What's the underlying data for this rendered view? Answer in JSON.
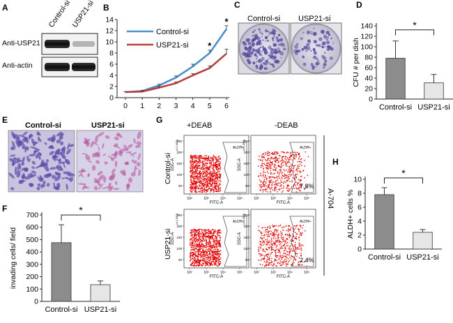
{
  "panels": {
    "a": {
      "letter": "A",
      "lanes": [
        "Control-si",
        "USP21-si"
      ],
      "blots": [
        "Anti-USP21",
        "Anti-actin"
      ]
    },
    "c": {
      "letter": "C",
      "dish_labels": [
        "Control-si",
        "USP21-si"
      ]
    },
    "e": {
      "letter": "E",
      "image_labels": [
        "Control-si",
        "USP21-si"
      ]
    },
    "g": {
      "letter": "G",
      "columns": [
        "+DEAB",
        "-DEAB"
      ],
      "rows": [
        "Control-si",
        "USP21-si"
      ],
      "gate_label": "ALDH+",
      "side_label": "A-704",
      "x_axis_label": "FITC-A",
      "y_axis_label": "SSC-A",
      "y_scale_label": "(x 1,000)",
      "x_ticks": [
        "10²",
        "10³",
        "10⁴",
        "10⁵"
      ],
      "y_ticks": [
        "250",
        "200",
        "150",
        "100",
        "50"
      ],
      "percents": {
        "control_deab_minus": "7.8%",
        "usp21_deab_minus": "2.4%"
      }
    }
  },
  "chart_data": [
    {
      "panel": "B",
      "type": "line",
      "title": "",
      "xlabel": "",
      "ylabel": "",
      "x": [
        0,
        1,
        2,
        3,
        4,
        5,
        6
      ],
      "xlim": [
        0,
        6
      ],
      "ylim": [
        0,
        14
      ],
      "yticks": [
        0,
        2,
        4,
        6,
        8,
        10,
        12,
        14
      ],
      "legend_position": "top-left",
      "series": [
        {
          "name": "Control-si",
          "color": "#4a90cd",
          "values": [
            1.0,
            1.2,
            2.2,
            3.6,
            5.6,
            8.0,
            12.3
          ],
          "errors": [
            0.05,
            0.1,
            0.2,
            0.3,
            0.4,
            0.5,
            0.6
          ]
        },
        {
          "name": "USP21-si",
          "color": "#b8413a",
          "values": [
            1.0,
            1.1,
            1.8,
            2.6,
            4.0,
            5.3,
            7.9
          ],
          "errors": [
            0.05,
            0.1,
            0.2,
            0.2,
            0.3,
            0.4,
            0.8
          ]
        }
      ],
      "annotations": [
        {
          "x": 5,
          "text": "*"
        },
        {
          "x": 6,
          "text": "*"
        }
      ]
    },
    {
      "panel": "D",
      "type": "bar",
      "title": "",
      "xlabel": "",
      "ylabel": "CFU # per dish",
      "categories": [
        "Control-si",
        "USP21-si"
      ],
      "values": [
        78,
        31
      ],
      "errors": [
        33,
        16
      ],
      "colors": [
        "#8c8c8c",
        "#e6e6e6"
      ],
      "ylim": [
        0,
        140
      ],
      "yticks": [
        0,
        20,
        40,
        60,
        80,
        100,
        120,
        140
      ],
      "significance": "*"
    },
    {
      "panel": "F",
      "type": "bar",
      "title": "",
      "xlabel": "",
      "ylabel": "invading cells/ field",
      "categories": [
        "Control-si",
        "USP21-si"
      ],
      "values": [
        475,
        135
      ],
      "errors": [
        145,
        30
      ],
      "colors": [
        "#8c8c8c",
        "#e6e6e6"
      ],
      "ylim": [
        0,
        700
      ],
      "yticks": [
        0,
        100,
        200,
        300,
        400,
        500,
        600,
        700
      ],
      "significance": "*"
    },
    {
      "panel": "H",
      "type": "bar",
      "title": "",
      "xlabel": "",
      "ylabel": "ALDH+ cells %",
      "categories": [
        "Control-si",
        "USP21-si"
      ],
      "values": [
        7.8,
        2.4
      ],
      "errors": [
        1.0,
        0.4
      ],
      "colors": [
        "#8c8c8c",
        "#e6e6e6"
      ],
      "ylim": [
        0,
        10
      ],
      "yticks": [
        0,
        2,
        4,
        6,
        8,
        10
      ],
      "significance": "*"
    }
  ]
}
